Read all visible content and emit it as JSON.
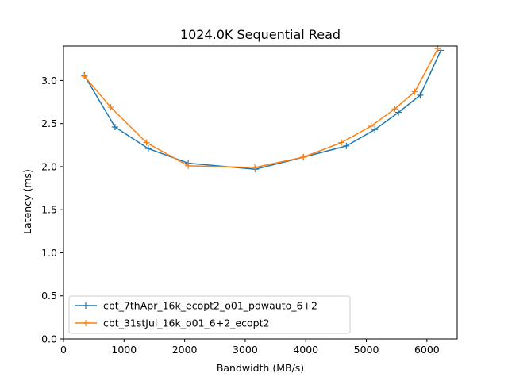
{
  "chart_data": {
    "type": "line",
    "title": "1024.0K  Sequential Read",
    "xlabel": "Bandwidth (MB/s)",
    "ylabel": "Latency (ms)",
    "xlim": [
      0,
      6500
    ],
    "ylim": [
      0.0,
      3.4
    ],
    "xticks": [
      0,
      1000,
      2000,
      3000,
      4000,
      5000,
      6000
    ],
    "xtick_labels": [
      "0",
      "1000",
      "2000",
      "3000",
      "4000",
      "5000",
      "6000"
    ],
    "yticks": [
      0.0,
      0.5,
      1.0,
      1.5,
      2.0,
      2.5,
      3.0
    ],
    "ytick_labels": [
      "0.0",
      "0.5",
      "1.0",
      "1.5",
      "2.0",
      "2.5",
      "3.0"
    ],
    "grid": false,
    "legend_position": "lower-left",
    "marker": "+",
    "series": [
      {
        "name": "cbt_7thApr_16k_ecopt2_o01_pdwauto_6+2",
        "color": "#1f77b4",
        "points": [
          [
            345,
            3.06
          ],
          [
            850,
            2.46
          ],
          [
            1400,
            2.21
          ],
          [
            2060,
            2.04
          ],
          [
            3170,
            1.97
          ],
          [
            3960,
            2.11
          ],
          [
            4670,
            2.24
          ],
          [
            5140,
            2.43
          ],
          [
            5530,
            2.63
          ],
          [
            5890,
            2.83
          ],
          [
            6230,
            3.35
          ]
        ]
      },
      {
        "name": "cbt_31stJul_16k_o01_6+2_ecopt2",
        "color": "#ff7f0e",
        "points": [
          [
            345,
            3.05
          ],
          [
            780,
            2.69
          ],
          [
            1370,
            2.28
          ],
          [
            2060,
            2.01
          ],
          [
            3160,
            1.99
          ],
          [
            3960,
            2.11
          ],
          [
            4590,
            2.28
          ],
          [
            5080,
            2.47
          ],
          [
            5470,
            2.67
          ],
          [
            5800,
            2.87
          ],
          [
            6180,
            3.37
          ]
        ]
      }
    ]
  }
}
